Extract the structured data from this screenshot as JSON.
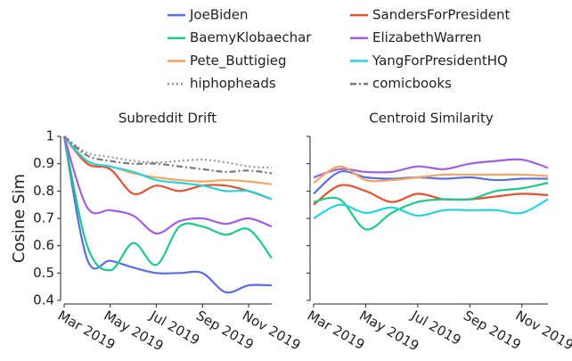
{
  "chart_data": [
    {
      "type": "line",
      "title": "Subreddit Drift",
      "y_label": "Cosine Sim",
      "x": [
        "2019-03",
        "2019-04",
        "2019-05",
        "2019-06",
        "2019-07",
        "2019-08",
        "2019-09",
        "2019-10",
        "2019-11",
        "2019-12"
      ],
      "xlim": [
        "2019-03",
        "2019-12"
      ],
      "xticks": [
        {
          "value": "2019-03",
          "label": "Mar 2019"
        },
        {
          "value": "2019-05",
          "label": "May 2019"
        },
        {
          "value": "2019-07",
          "label": "Jul 2019"
        },
        {
          "value": "2019-09",
          "label": "Sep 2019"
        },
        {
          "value": "2019-11",
          "label": "Nov 2019"
        }
      ],
      "ylim": [
        0.4,
        1.0
      ],
      "yticks": [
        0.4,
        0.5,
        0.6,
        0.7,
        0.8,
        0.9,
        1
      ],
      "series": [
        {
          "name": "JoeBiden",
          "color": "#5b6ee1",
          "dash": "solid",
          "values": [
            1,
            0.55,
            0.545,
            0.52,
            0.5,
            0.5,
            0.5,
            0.43,
            0.455,
            0.455
          ]
        },
        {
          "name": "SandersForPresident",
          "color": "#e2502f",
          "dash": "solid",
          "values": [
            1,
            0.9,
            0.88,
            0.79,
            0.82,
            0.8,
            0.82,
            0.82,
            0.8,
            0.77
          ]
        },
        {
          "name": "BaemyKlobaechar",
          "color": "#1cc98a",
          "dash": "solid",
          "values": [
            1,
            0.6,
            0.51,
            0.61,
            0.53,
            0.67,
            0.67,
            0.64,
            0.66,
            0.555
          ]
        },
        {
          "name": "ElizabethWarren",
          "color": "#a25fe0",
          "dash": "solid",
          "values": [
            1,
            0.74,
            0.73,
            0.71,
            0.645,
            0.69,
            0.7,
            0.68,
            0.7,
            0.67
          ]
        },
        {
          "name": "Pete_Buttigieg",
          "color": "#f5a560",
          "dash": "solid",
          "values": [
            1,
            0.91,
            0.89,
            0.865,
            0.85,
            0.84,
            0.835,
            0.84,
            0.835,
            0.825
          ]
        },
        {
          "name": "YangForPresidentHQ",
          "color": "#25d3df",
          "dash": "solid",
          "values": [
            1,
            0.91,
            0.89,
            0.87,
            0.84,
            0.83,
            0.82,
            0.8,
            0.8,
            0.77
          ]
        },
        {
          "name": "hiphopheads",
          "color": "#999999",
          "dash": "dotted",
          "values": [
            1,
            0.94,
            0.925,
            0.91,
            0.905,
            0.91,
            0.915,
            0.905,
            0.89,
            0.885
          ]
        },
        {
          "name": "comicbooks",
          "color": "#777777",
          "dash": "dashdot",
          "values": [
            1,
            0.93,
            0.91,
            0.9,
            0.9,
            0.89,
            0.88,
            0.87,
            0.875,
            0.865
          ]
        }
      ]
    },
    {
      "type": "line",
      "title": "Centroid Similarity",
      "x": [
        "2019-03",
        "2019-04",
        "2019-05",
        "2019-06",
        "2019-07",
        "2019-08",
        "2019-09",
        "2019-10",
        "2019-11",
        "2019-12"
      ],
      "xlim": [
        "2019-03",
        "2019-12"
      ],
      "xticks": [
        {
          "value": "2019-03",
          "label": "Mar 2019"
        },
        {
          "value": "2019-05",
          "label": "May 2019"
        },
        {
          "value": "2019-07",
          "label": "Jul 2019"
        },
        {
          "value": "2019-09",
          "label": "Sep 2019"
        },
        {
          "value": "2019-11",
          "label": "Nov 2019"
        }
      ],
      "ylim": [
        0.4,
        1.0
      ],
      "yticks": [
        0.4,
        0.5,
        0.6,
        0.7,
        0.8,
        0.9,
        1
      ],
      "series": [
        {
          "color": "#5b6ee1",
          "dash": "solid",
          "values": [
            0.79,
            0.87,
            0.85,
            0.845,
            0.85,
            0.845,
            0.85,
            0.84,
            0.845,
            0.845
          ]
        },
        {
          "color": "#e2502f",
          "dash": "solid",
          "values": [
            0.75,
            0.82,
            0.8,
            0.76,
            0.79,
            0.77,
            0.77,
            0.78,
            0.79,
            0.785
          ]
        },
        {
          "color": "#1cc98a",
          "dash": "solid",
          "values": [
            0.76,
            0.77,
            0.66,
            0.72,
            0.76,
            0.77,
            0.77,
            0.8,
            0.81,
            0.83
          ]
        },
        {
          "color": "#a25fe0",
          "dash": "solid",
          "values": [
            0.85,
            0.88,
            0.87,
            0.87,
            0.89,
            0.88,
            0.9,
            0.91,
            0.915,
            0.885
          ]
        },
        {
          "color": "#f5a560",
          "dash": "solid",
          "values": [
            0.83,
            0.89,
            0.84,
            0.84,
            0.85,
            0.86,
            0.86,
            0.86,
            0.86,
            0.855
          ]
        },
        {
          "color": "#25d3df",
          "dash": "solid",
          "values": [
            0.7,
            0.75,
            0.72,
            0.74,
            0.71,
            0.73,
            0.73,
            0.73,
            0.72,
            0.77
          ]
        }
      ]
    }
  ]
}
